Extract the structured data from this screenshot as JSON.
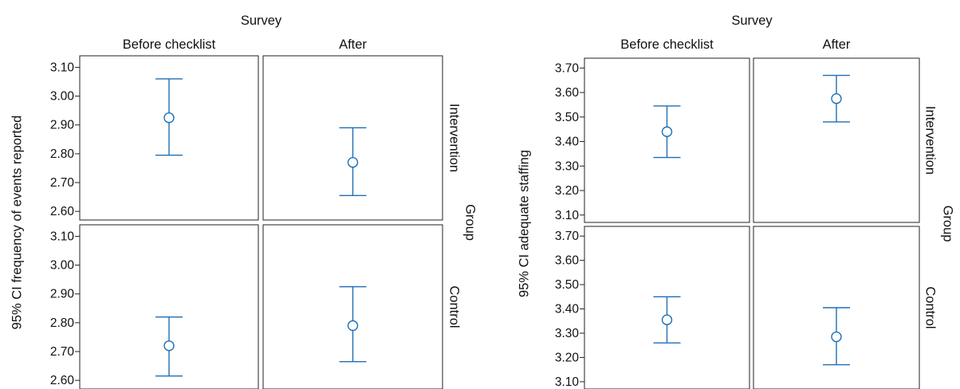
{
  "chart_data": [
    {
      "type": "errorbar",
      "facet_column_title": "Survey",
      "facet_row_title": "Group",
      "columns": [
        "Before checklist",
        "After"
      ],
      "rows": [
        "Intervention",
        "Control"
      ],
      "ylabel": "95% CI frequency of events reported",
      "yticks": [
        "2.60",
        "2.70",
        "2.80",
        "2.90",
        "3.00",
        "3.10"
      ],
      "ylim": [
        2.57,
        3.14
      ],
      "color": "#1f6fb5",
      "grid": false,
      "legend": "none",
      "points": [
        {
          "row": "Intervention",
          "column": "Before checklist",
          "mean": 2.925,
          "lower": 2.795,
          "upper": 3.06
        },
        {
          "row": "Intervention",
          "column": "After",
          "mean": 2.77,
          "lower": 2.655,
          "upper": 2.89
        },
        {
          "row": "Control",
          "column": "Before checklist",
          "mean": 2.72,
          "lower": 2.615,
          "upper": 2.82
        },
        {
          "row": "Control",
          "column": "After",
          "mean": 2.79,
          "lower": 2.665,
          "upper": 2.925
        }
      ]
    },
    {
      "type": "errorbar",
      "facet_column_title": "Survey",
      "facet_row_title": "Group",
      "columns": [
        "Before checklist",
        "After"
      ],
      "rows": [
        "Intervention",
        "Control"
      ],
      "ylabel": "95% CI adequate staffing",
      "yticks": [
        "3.10",
        "3.20",
        "3.30",
        "3.40",
        "3.50",
        "3.60",
        "3.70"
      ],
      "ylim": [
        3.07,
        3.74
      ],
      "color": "#1f6fb5",
      "grid": false,
      "legend": "none",
      "points": [
        {
          "row": "Intervention",
          "column": "Before checklist",
          "mean": 3.44,
          "lower": 3.335,
          "upper": 3.545
        },
        {
          "row": "Intervention",
          "column": "After",
          "mean": 3.575,
          "lower": 3.48,
          "upper": 3.67
        },
        {
          "row": "Control",
          "column": "Before checklist",
          "mean": 3.355,
          "lower": 3.26,
          "upper": 3.45
        },
        {
          "row": "Control",
          "column": "After",
          "mean": 3.285,
          "lower": 3.17,
          "upper": 3.405
        }
      ]
    }
  ]
}
